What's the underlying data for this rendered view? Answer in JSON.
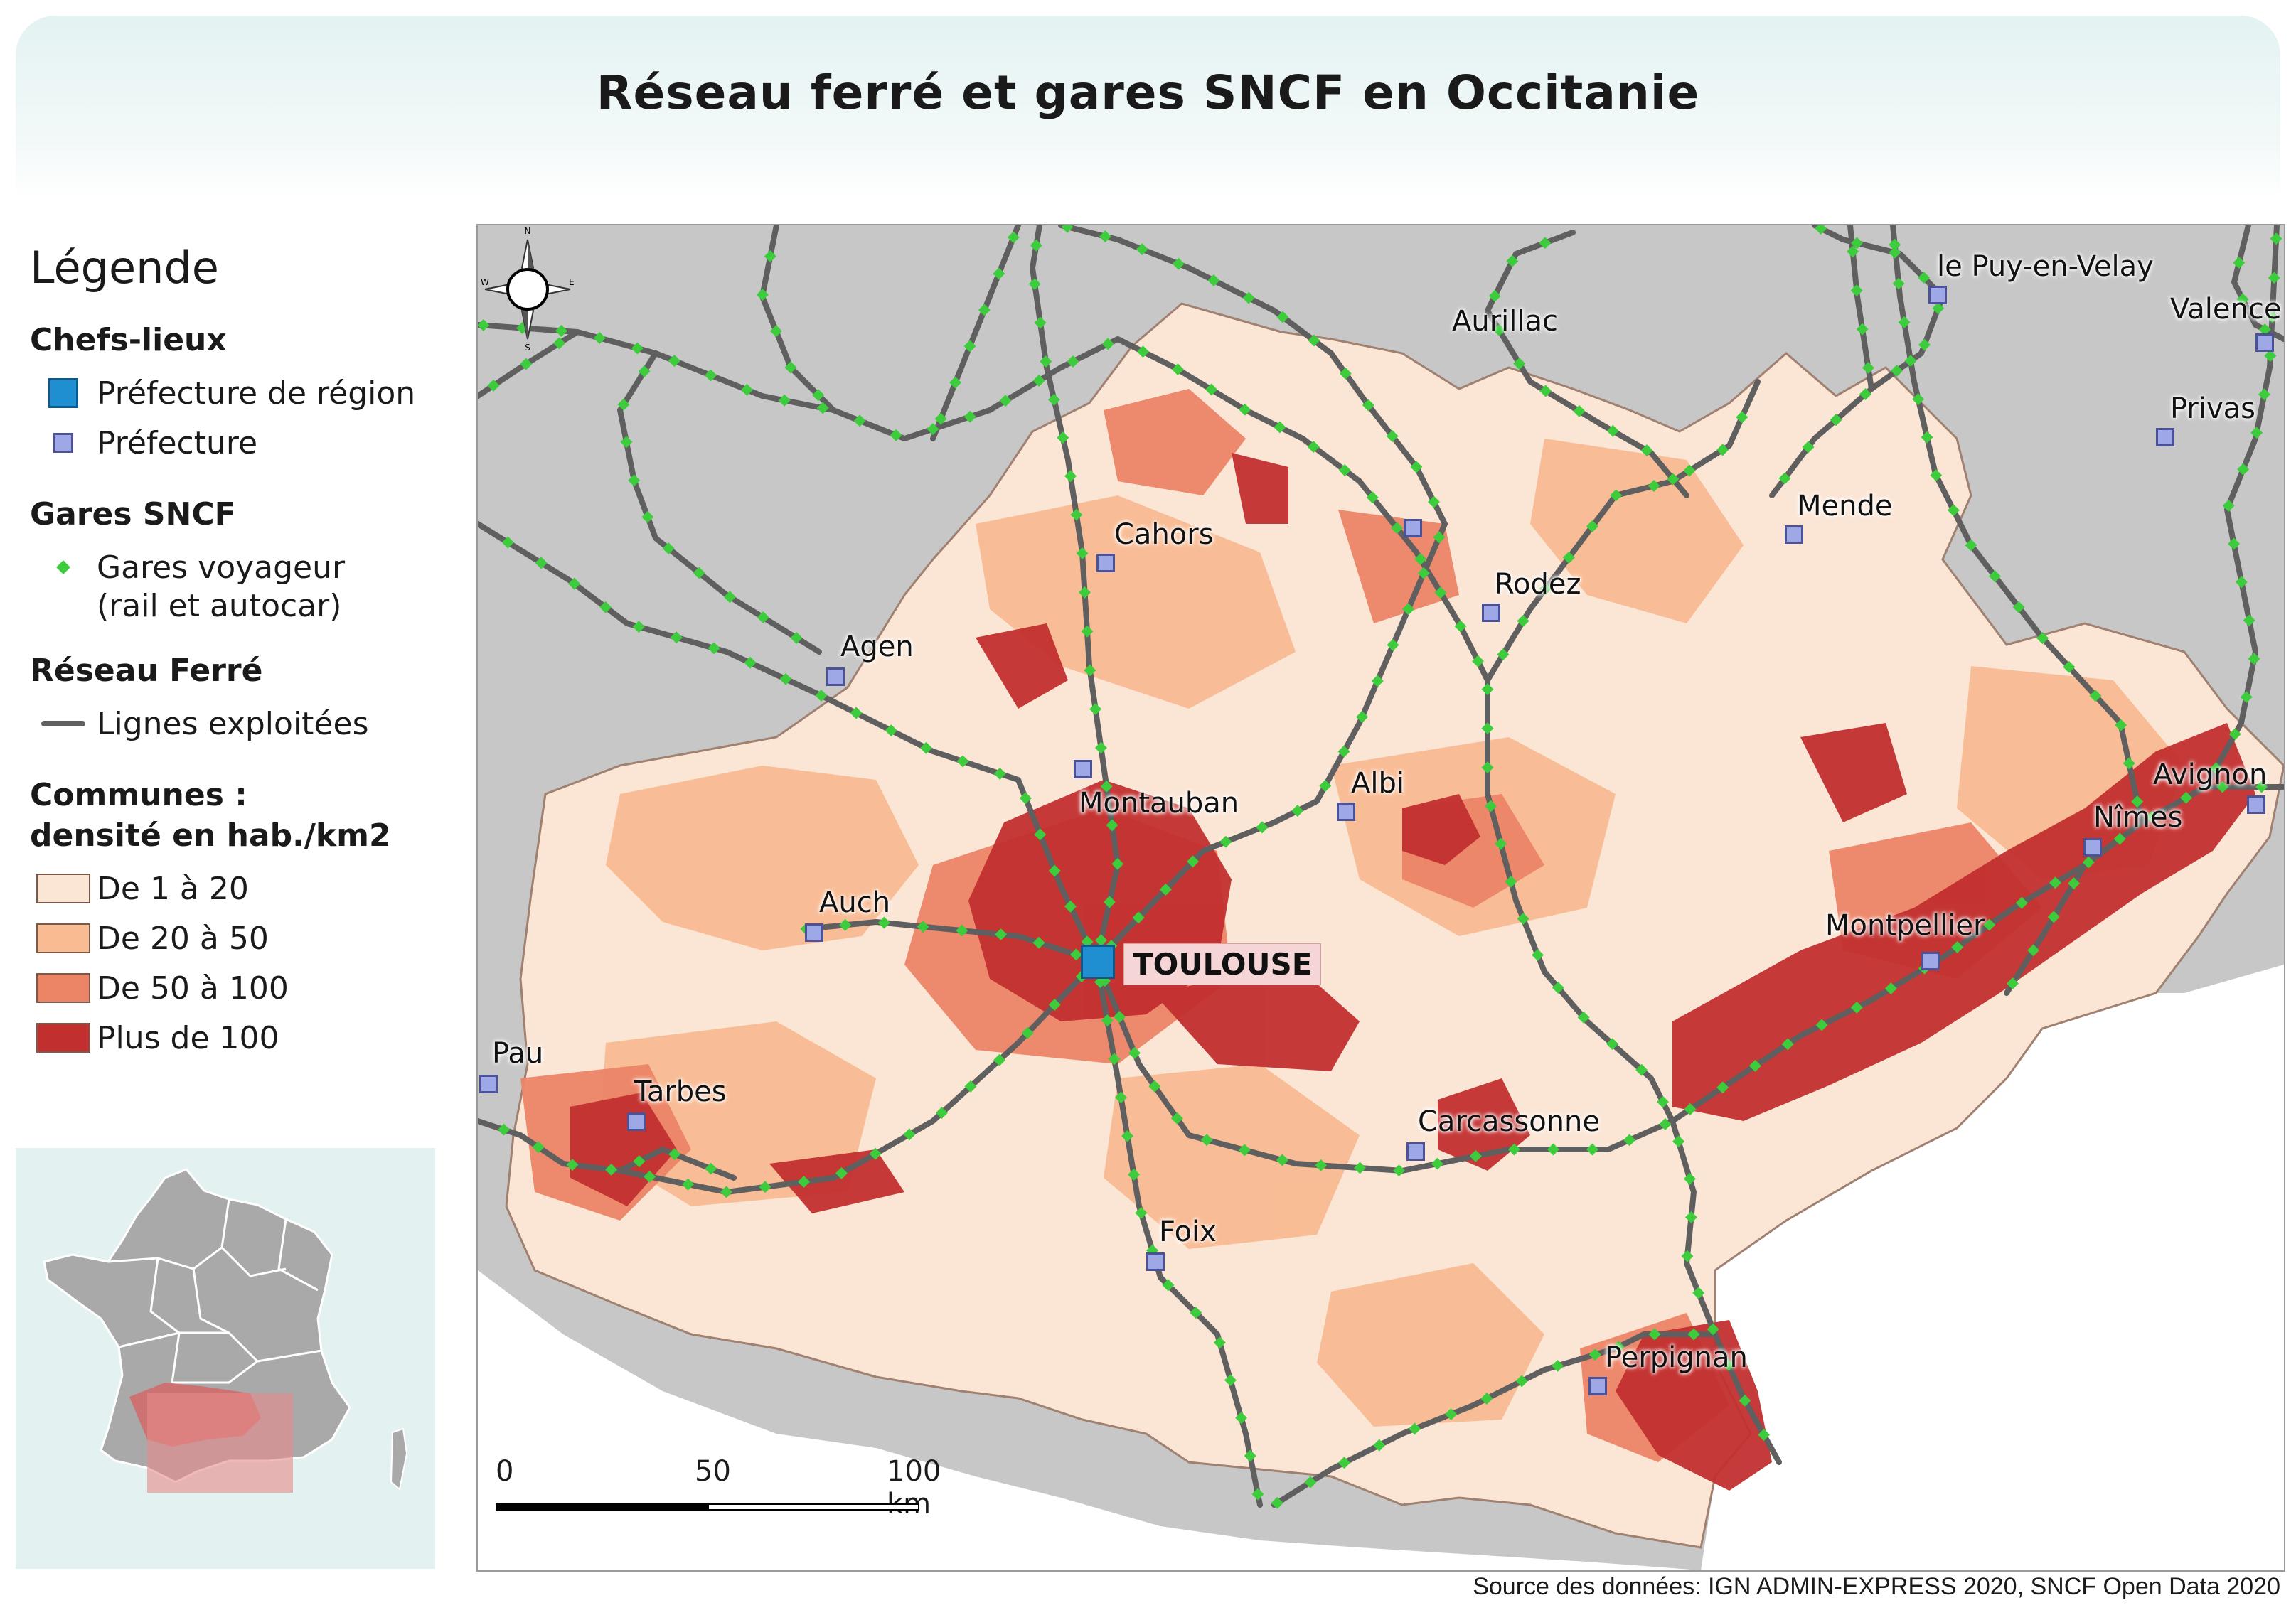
{
  "title": "Réseau ferré et gares SNCF en Occitanie",
  "legend": {
    "heading": "Légende",
    "chefs_lieux": {
      "title": "Chefs-lieux",
      "prefecture_region": "Préfecture de région",
      "prefecture": "Préfecture"
    },
    "gares": {
      "title": "Gares SNCF",
      "voyageur": "Gares voyageur",
      "voyageur_note": "(rail et autocar)"
    },
    "reseau": {
      "title": "Réseau Ferré",
      "lignes": "Lignes exploitées"
    },
    "communes": {
      "title_line1": "Communes :",
      "title_line2": "densité en hab./km2",
      "classes": [
        {
          "label": "De 1 à 20",
          "color": "#fbe6d6"
        },
        {
          "label": "De 20 à 50",
          "color": "#f8bb92"
        },
        {
          "label": "De 50 à 100",
          "color": "#ec8466"
        },
        {
          "label": "Plus de 100",
          "color": "#c22f2f"
        }
      ]
    }
  },
  "map": {
    "regional_capital": "TOULOUSE",
    "prefectures": [
      "Aurillac",
      "le Puy-en-Velay",
      "Valence",
      "Privas",
      "Mende",
      "Cahors",
      "Rodez",
      "Agen",
      "Montauban",
      "Albi",
      "Avignon",
      "Nîmes",
      "Auch",
      "Montpellier",
      "Pau",
      "Tarbes",
      "Carcassonne",
      "Foix",
      "Perpignan"
    ],
    "scale": {
      "labels": [
        "0",
        "50",
        "100 km"
      ]
    },
    "compass": {
      "n": "N",
      "s": "S",
      "e": "E",
      "w": "W"
    }
  },
  "colors": {
    "rail": "#5f5f5f",
    "station": "#3ccc3c",
    "outside": "#c7c7c7",
    "sea": "#ffffff"
  },
  "source": "Source des données: IGN ADMIN-EXPRESS 2020, SNCF Open Data 2020"
}
